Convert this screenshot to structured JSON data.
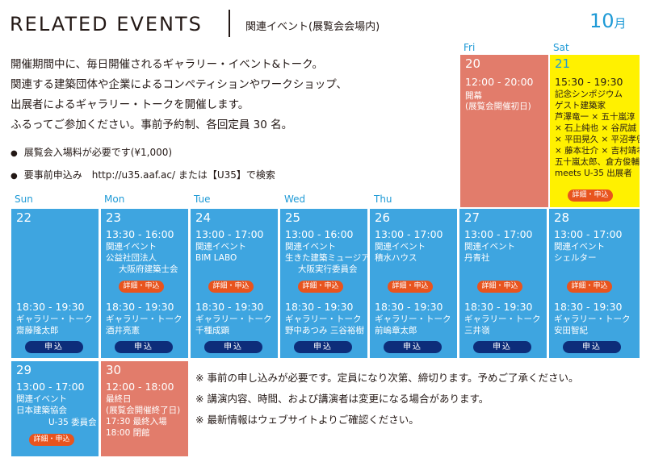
{
  "header": {
    "title": "RELATED EVENTS",
    "subtitle": "関連イベント(展覧会会場内)",
    "month_num": "10",
    "month_unit": "月"
  },
  "intro": {
    "lines": [
      "開催期間中に、毎日開催されるギャラリー・イベント&トーク。",
      "関連する建築団体や企業によるコンペティションやワークショップ、",
      "出展者によるギャラリー・トークを開催します。",
      "ふるってご参加ください。事前予約制、各回定員 30 名。"
    ],
    "notes": [
      "展覧会入場料が必要です(¥1,000)",
      "要事前申込み　http://u35.aaf.ac/ または【U35】で検索"
    ]
  },
  "weekdays": [
    "Sun",
    "Mon",
    "Tue",
    "Wed",
    "Thu",
    "Fri",
    "Sat"
  ],
  "days": {
    "d20": {
      "date": "20",
      "time": "12:00 - 20:00",
      "l1": "開幕",
      "l2": "(展覧会開催初日)"
    },
    "d21": {
      "date": "21",
      "time": "15:30 - 19:30",
      "lines": [
        "記念シンポジウム",
        "ゲスト建築家",
        "芦澤竜一 × 五十嵐淳",
        "× 石上純也 × 谷尻誠",
        "× 平田晃久 × 平沼孝啓",
        "× 藤本壮介 × 吉村靖孝",
        "五十嵐太郎、倉方俊輔",
        "meets U-35 出展者"
      ],
      "btn": "詳細・申込"
    },
    "d22": {
      "date": "22",
      "gtime": "18:30 - 19:30",
      "gtitle": "ギャラリー・トーク",
      "gname": "齋藤隆太郎",
      "apply": "申込"
    },
    "d23": {
      "date": "23",
      "time": "13:30 - 16:00",
      "l1": "関連イベント",
      "l2": "公益社団法人",
      "l3": "大阪府建築士会",
      "btn": "詳細・申込",
      "gtime": "18:30 - 19:30",
      "gtitle": "ギャラリー・トーク",
      "gname": "酒井亮憲",
      "apply": "申込"
    },
    "d24": {
      "date": "24",
      "time": "13:00 - 17:00",
      "l1": "関連イベント",
      "l2": "BIM LABO",
      "btn": "詳細・申込",
      "gtime": "18:30 - 19:30",
      "gtitle": "ギャラリー・トーク",
      "gname": "千種成顕",
      "apply": "申込"
    },
    "d25": {
      "date": "25",
      "time": "13:00 - 16:00",
      "l1": "関連イベント",
      "l2": "生きた建築ミュージアム",
      "l3": "大阪実行委員会",
      "btn": "詳細・申込",
      "gtime": "18:30 - 19:30",
      "gtitle": "ギャラリー・トーク",
      "gname": "野中あつみ 三谷裕樹",
      "apply": "申込"
    },
    "d26": {
      "date": "26",
      "time": "13:00 - 17:00",
      "l1": "関連イベント",
      "l2": "積水ハウス",
      "btn": "詳細・申込",
      "gtime": "18:30 - 19:30",
      "gtitle": "ギャラリー・トーク",
      "gname": "前嶋章太郎",
      "apply": "申込"
    },
    "d27": {
      "date": "27",
      "time": "13:00 - 17:00",
      "l1": "関連イベント",
      "l2": "丹青社",
      "btn": "詳細・申込",
      "gtime": "18:30 - 19:30",
      "gtitle": "ギャラリー・トーク",
      "gname": "三井嶺",
      "apply": "申込"
    },
    "d28": {
      "date": "28",
      "time": "13:00 - 17:00",
      "l1": "関連イベント",
      "l2": "シェルター",
      "btn": "詳細・申込",
      "gtime": "18:30 - 19:30",
      "gtitle": "ギャラリー・トーク",
      "gname": "安田智紀",
      "apply": "申込"
    },
    "d29": {
      "date": "29",
      "time": "13:00 - 17:00",
      "l1": "関連イベント",
      "l2": "日本建築協会",
      "l3": "U-35 委員会",
      "btn": "詳細・申込"
    },
    "d30": {
      "date": "30",
      "time": "12:00 - 18:00",
      "l1": "最終日",
      "l2": "(展覧会開催終了日)",
      "l3": "17:30 最終入場",
      "l4": "18:00 閉館"
    }
  },
  "bottom_notes": [
    "※ 事前の申し込みが必要です。定員になり次第、締切ります。予めご了承ください。",
    "※ 講演内容、時間、および講演者は変更になる場合があります。",
    "※ 最新情報はウェブサイトよりご確認ください。"
  ],
  "colors": {
    "blue": "#3ea5e0",
    "red": "#e27c6b",
    "yellow": "#fff100",
    "orange_btn": "#e8541e",
    "navy_btn": "#0d2d7a",
    "accent": "#1e9ad6"
  }
}
